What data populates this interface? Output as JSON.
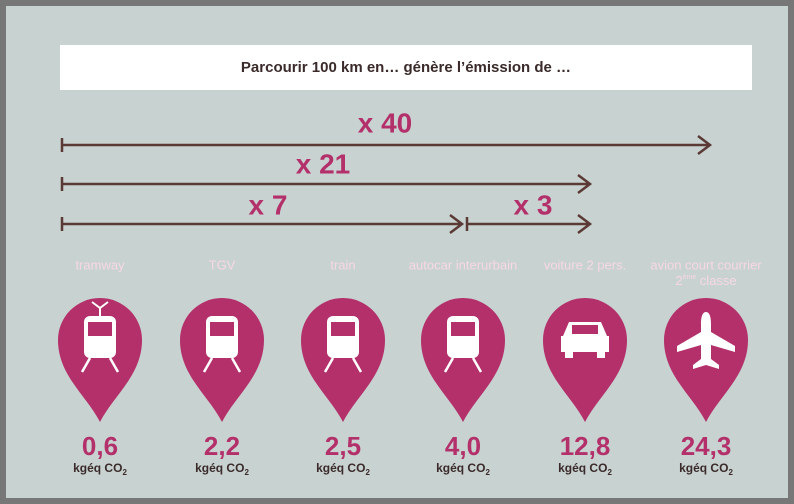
{
  "title": "Parcourir 100 km en… génère l’émission de …",
  "arrows": [
    {
      "label": "x 40"
    },
    {
      "label": "x 21"
    },
    {
      "label": "x 7"
    },
    {
      "label": "x 3"
    }
  ],
  "unit": "kgéq CO",
  "unit_sub": "2",
  "modes": [
    {
      "name": "tramway",
      "value": "0,6"
    },
    {
      "name": "TGV",
      "value": "2,2"
    },
    {
      "name": "train",
      "value": "2,5"
    },
    {
      "name": "autocar interurbain",
      "value": "4,0"
    },
    {
      "name": "voiture 2 pers.",
      "value": "12,8"
    },
    {
      "name": "avion court courrier",
      "name2": "2",
      "name2_sup": "ème",
      "name2_rest": " classe",
      "value": "24,3"
    }
  ]
}
